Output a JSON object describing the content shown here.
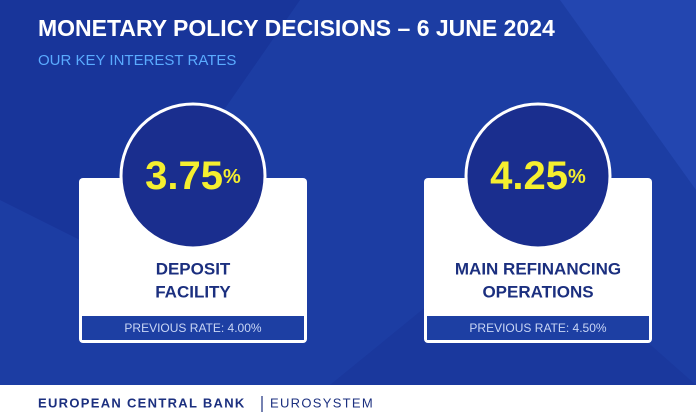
{
  "header": {
    "title": "MONETARY POLICY DECISIONS – 6 JUNE 2024",
    "subtitle": "OUR KEY INTEREST RATES"
  },
  "cards": [
    {
      "rate": "3.75",
      "unit": "%",
      "label": [
        "DEPOSIT",
        "FACILITY"
      ],
      "previous": "PREVIOUS RATE: 4.00%"
    },
    {
      "rate": "4.25",
      "unit": "%",
      "label": [
        "MAIN REFINANCING",
        "OPERATIONS"
      ],
      "previous": "PREVIOUS RATE: 4.50%"
    }
  ],
  "footer": {
    "name": "EUROPEAN CENTRAL BANK",
    "system": "EUROSYSTEM"
  }
}
